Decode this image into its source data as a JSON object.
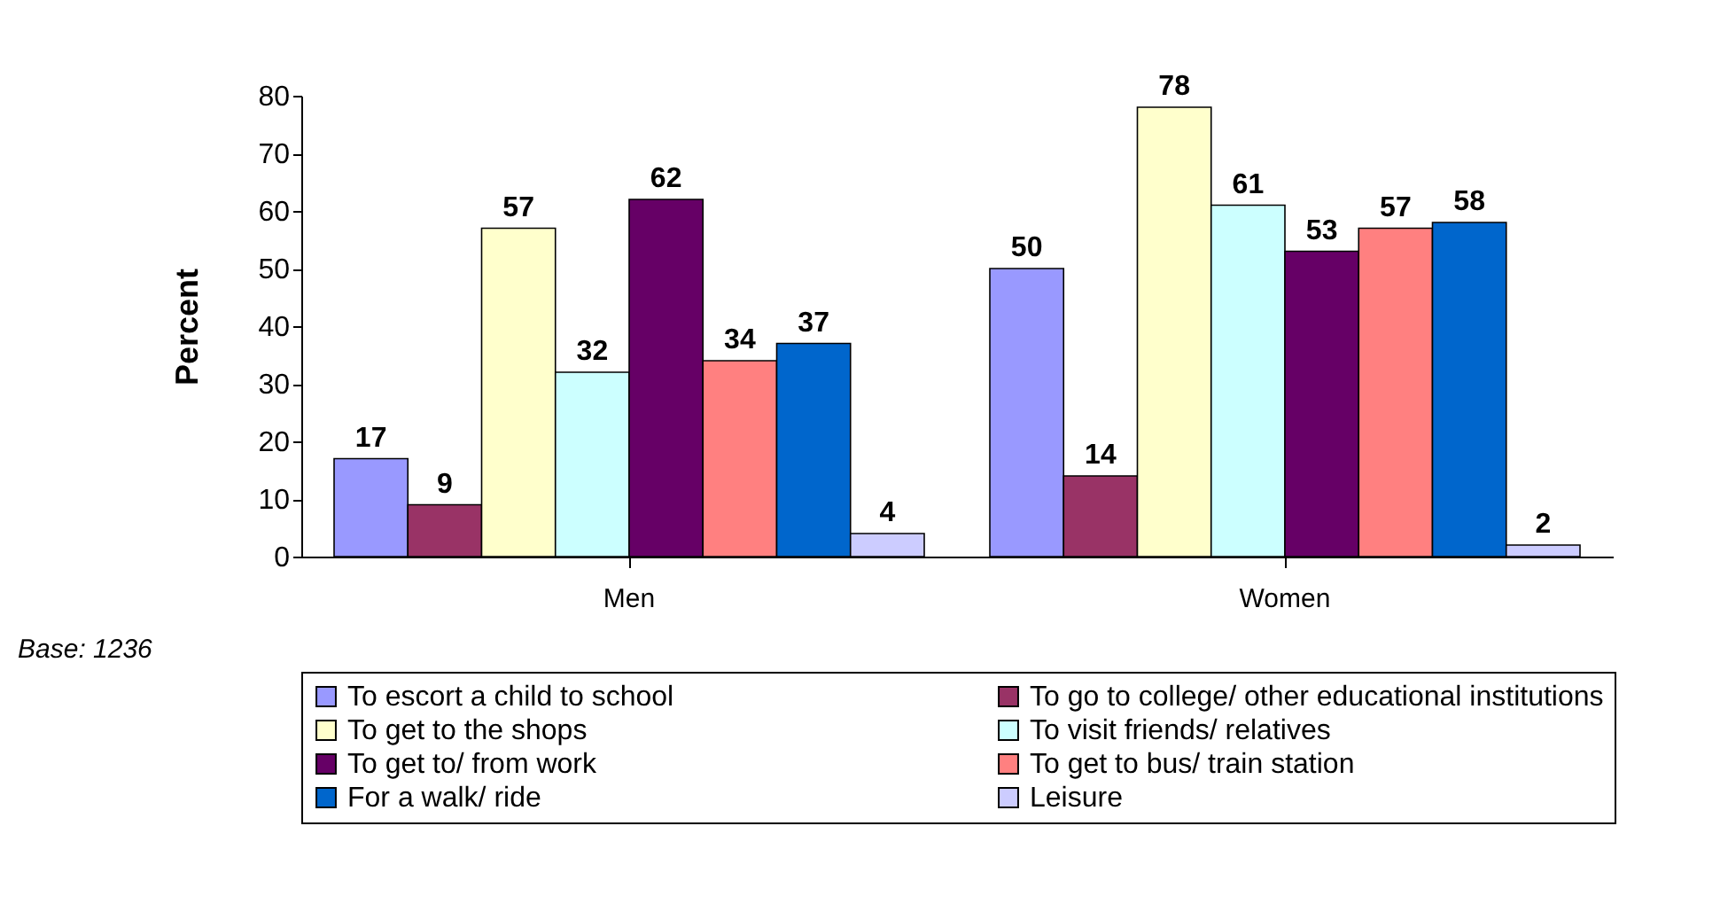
{
  "chart_data": {
    "type": "bar",
    "ylabel": "Percent",
    "categories": [
      "Men",
      "Women"
    ],
    "series": [
      {
        "name": "To escort a child to school",
        "color": "#9999ff",
        "values": [
          17,
          50
        ]
      },
      {
        "name": "To go to college/ other educational institutions",
        "color": "#993366",
        "values": [
          9,
          14
        ]
      },
      {
        "name": "To get to the shops",
        "color": "#ffffcc",
        "values": [
          57,
          78
        ]
      },
      {
        "name": "To visit friends/ relatives",
        "color": "#ccffff",
        "values": [
          32,
          61
        ]
      },
      {
        "name": "To get to/ from work",
        "color": "#660066",
        "values": [
          62,
          53
        ]
      },
      {
        "name": "To get to bus/ train station",
        "color": "#ff8080",
        "values": [
          34,
          57
        ]
      },
      {
        "name": "For a walk/ ride",
        "color": "#0066cc",
        "values": [
          37,
          58
        ]
      },
      {
        "name": "Leisure",
        "color": "#ccccff",
        "values": [
          4,
          2
        ]
      }
    ],
    "ylim": [
      0,
      80
    ],
    "yticks": [
      0,
      10,
      20,
      30,
      40,
      50,
      60,
      70,
      80
    ],
    "data_labels": true,
    "legend": "bottom",
    "annotations": [
      "Base: 1236"
    ]
  }
}
